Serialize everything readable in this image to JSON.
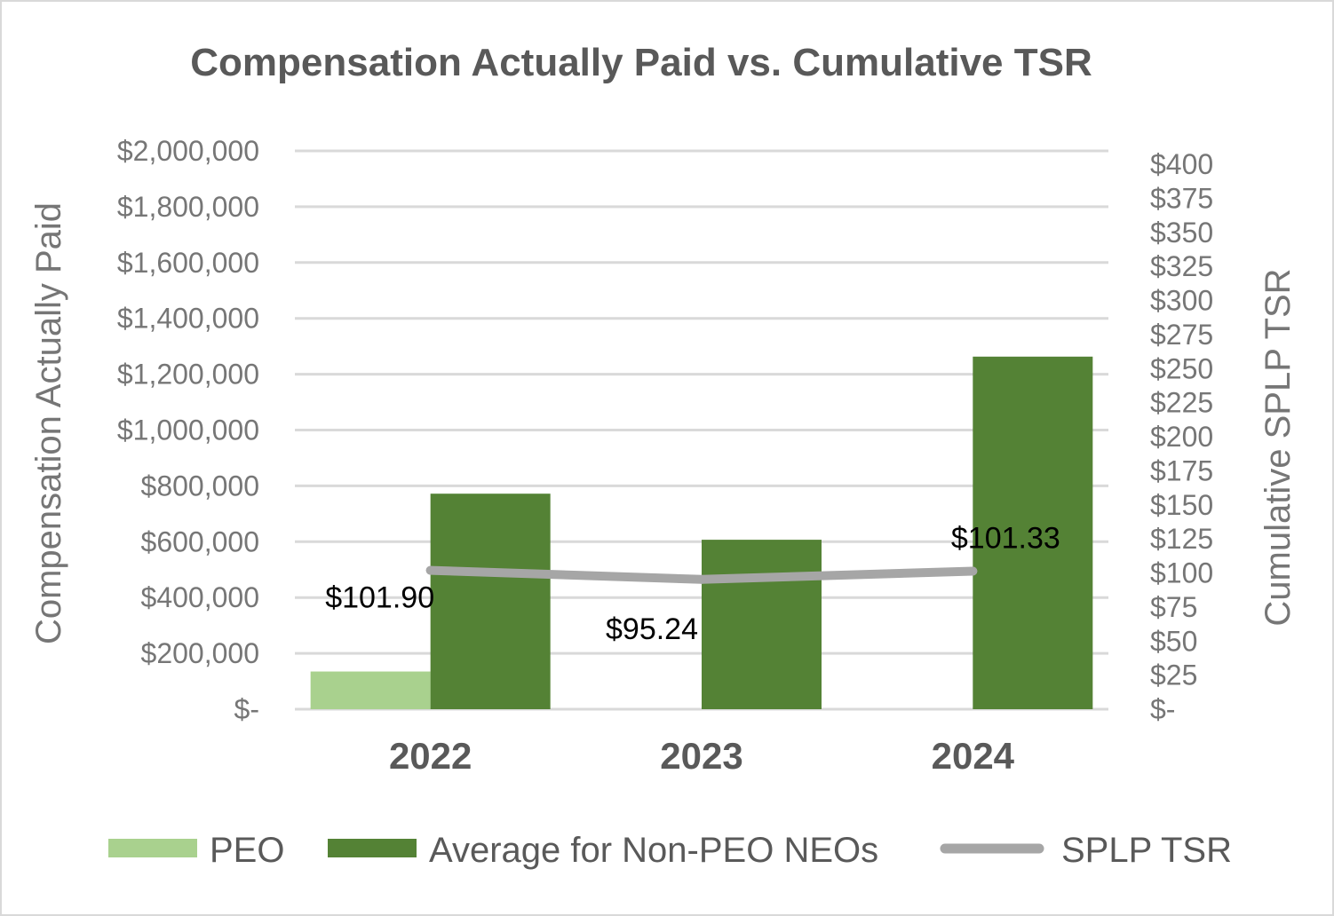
{
  "chart_data": {
    "type": "bar",
    "title": "Compensation Actually Paid vs. Cumulative TSR",
    "categories": [
      "2022",
      "2023",
      "2024"
    ],
    "ylabel": "Compensation Actually Paid",
    "y2label": "Cumulative SPLP  TSR",
    "ylim": [
      0,
      2000000
    ],
    "y2lim": [
      0,
      400
    ],
    "yticks": [
      "$-",
      "$200,000",
      "$400,000",
      "$600,000",
      "$800,000",
      "$1,000,000",
      "$1,200,000",
      "$1,400,000",
      "$1,600,000",
      "$1,800,000",
      "$2,000,000"
    ],
    "y2ticks": [
      "$-",
      "$25",
      "$50",
      "$75",
      "$100",
      "$125",
      "$150",
      "$175",
      "$200",
      "$225",
      "$250",
      "$275",
      "$300",
      "$325",
      "$350",
      "$375",
      "$400"
    ],
    "gridlines": true,
    "legend_position": "bottom",
    "series": [
      {
        "name": "PEO",
        "kind": "bar",
        "axis": "left",
        "color": "#a9d18e",
        "values": [
          135000,
          0,
          0
        ]
      },
      {
        "name": "Average for Non-PEO NEOs",
        "kind": "bar",
        "axis": "left",
        "color": "#548235",
        "values": [
          772000,
          607000,
          1263000
        ]
      },
      {
        "name": "SPLP TSR",
        "kind": "line",
        "axis": "right",
        "color": "#a6a6a6",
        "values": [
          101.9,
          95.24,
          101.33
        ],
        "labels": [
          "$101.90",
          "$95.24",
          "$101.33"
        ]
      }
    ]
  }
}
